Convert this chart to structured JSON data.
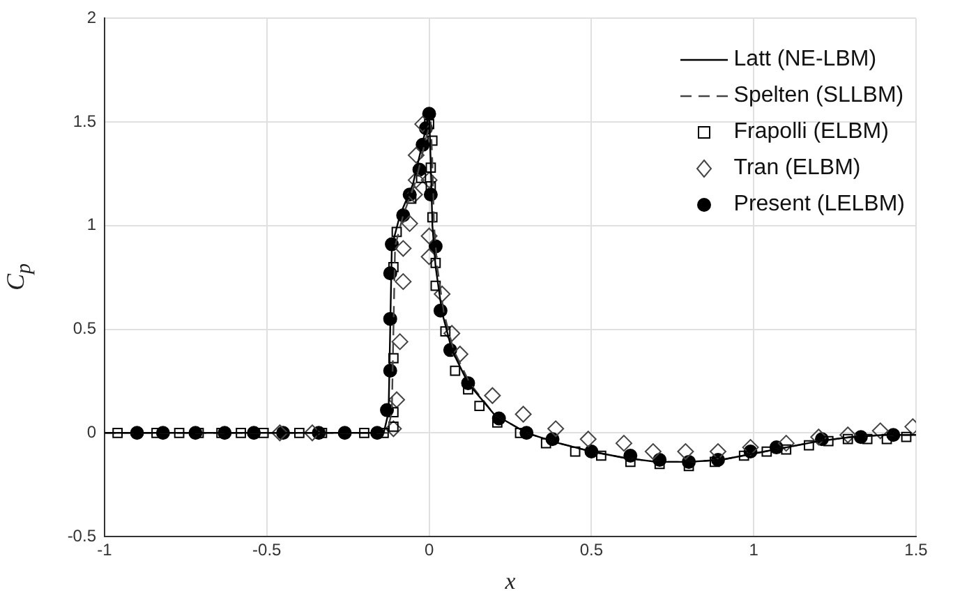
{
  "chart_data": {
    "type": "scatter",
    "xlabel": "x",
    "ylabel": "C$_{p}$",
    "xlim": [
      -1,
      1.5
    ],
    "ylim": [
      -0.5,
      2
    ],
    "xticks": [
      -1,
      -0.5,
      0,
      0.5,
      1,
      1.5
    ],
    "yticks": [
      -0.5,
      0,
      0.5,
      1,
      1.5,
      2
    ],
    "grid": true,
    "legend": "top right",
    "series": [
      {
        "name": "Latt (NE-LBM)",
        "type": "line",
        "color": "#000000",
        "marker": "none",
        "line_style": "solid",
        "x": [
          -1,
          -0.14,
          -0.125,
          -0.12,
          -0.115,
          -0.09,
          -0.05,
          -0.02,
          0,
          0.005,
          0.01,
          0.02,
          0.04,
          0.07,
          0.12,
          0.2,
          0.3,
          0.4,
          0.5,
          0.6,
          0.7,
          0.8,
          0.9,
          1.0,
          1.1,
          1.2,
          1.3,
          1.4,
          1.5
        ],
        "values": [
          0,
          0,
          0.1,
          0.5,
          0.9,
          1.05,
          1.2,
          1.4,
          1.54,
          1.3,
          1.0,
          0.8,
          0.58,
          0.4,
          0.24,
          0.09,
          0.0,
          -0.05,
          -0.09,
          -0.12,
          -0.14,
          -0.14,
          -0.13,
          -0.1,
          -0.07,
          -0.04,
          -0.02,
          -0.01,
          -0.01
        ]
      },
      {
        "name": "Spelten (SLLBM)",
        "type": "line",
        "color": "#444444",
        "marker": "none",
        "line_style": "dashed",
        "x": [
          -1,
          -0.13,
          -0.115,
          -0.11,
          -0.105,
          -0.08,
          -0.04,
          -0.01,
          0.005,
          0.01,
          0.015,
          0.025,
          0.045,
          0.075,
          0.125,
          0.2,
          0.3,
          0.4,
          0.5,
          0.6,
          0.7,
          0.8,
          0.9,
          1.0,
          1.1,
          1.2,
          1.3,
          1.4,
          1.5
        ],
        "values": [
          0,
          0,
          0.1,
          0.5,
          0.9,
          1.05,
          1.22,
          1.42,
          1.5,
          1.3,
          1.0,
          0.8,
          0.58,
          0.4,
          0.24,
          0.09,
          0.0,
          -0.05,
          -0.09,
          -0.12,
          -0.14,
          -0.14,
          -0.13,
          -0.1,
          -0.07,
          -0.04,
          -0.02,
          -0.01,
          -0.01
        ]
      },
      {
        "name": "Frapolli (ELBM)",
        "color": "#000000",
        "marker": "square",
        "x": [
          -0.96,
          -0.84,
          -0.77,
          -0.71,
          -0.64,
          -0.58,
          -0.51,
          -0.4,
          -0.33,
          -0.2,
          -0.14,
          -0.11,
          -0.11,
          -0.11,
          -0.11,
          -0.1,
          -0.055,
          -0.025,
          0.005,
          0.005,
          0.0,
          0.01,
          0.01,
          0.02,
          0.02,
          0.05,
          0.08,
          0.12,
          0.155,
          0.21,
          0.28,
          0.36,
          0.45,
          0.53,
          0.62,
          0.71,
          0.8,
          0.88,
          0.97,
          1.04,
          1.1,
          1.17,
          1.23,
          1.29,
          1.35,
          1.41,
          1.47
        ],
        "values": [
          0,
          0,
          0,
          0,
          0,
          0,
          0,
          0,
          0,
          0,
          0,
          0.03,
          0.1,
          0.36,
          0.8,
          0.97,
          1.13,
          1.23,
          1.28,
          1.19,
          1.49,
          1.41,
          1.04,
          0.82,
          0.71,
          0.49,
          0.3,
          0.21,
          0.13,
          0.05,
          0.0,
          -0.05,
          -0.09,
          -0.11,
          -0.14,
          -0.15,
          -0.16,
          -0.14,
          -0.11,
          -0.09,
          -0.08,
          -0.06,
          -0.04,
          -0.03,
          -0.03,
          -0.03,
          -0.02
        ]
      },
      {
        "name": "Tran (ELBM)",
        "color": "#444444",
        "marker": "diamond",
        "x": [
          -0.46,
          -0.36,
          -0.11,
          -0.1,
          -0.09,
          -0.08,
          -0.08,
          -0.06,
          -0.045,
          -0.04,
          -0.04,
          -0.02,
          0.0,
          0.0,
          0.0,
          0.04,
          0.07,
          0.095,
          0.195,
          0.29,
          0.39,
          0.49,
          0.6,
          0.69,
          0.79,
          0.89,
          0.99,
          1.1,
          1.2,
          1.29,
          1.39,
          1.49
        ],
        "values": [
          0,
          0,
          0.02,
          0.16,
          0.44,
          0.73,
          0.89,
          1.01,
          1.15,
          1.22,
          1.34,
          1.49,
          1.22,
          0.95,
          0.85,
          0.67,
          0.48,
          0.38,
          0.18,
          0.09,
          0.02,
          -0.03,
          -0.05,
          -0.09,
          -0.09,
          -0.09,
          -0.07,
          -0.05,
          -0.02,
          -0.01,
          0.01,
          0.03
        ]
      },
      {
        "name": "Present (LELBM)",
        "color": "#000000",
        "marker": "circle",
        "x": [
          -0.9,
          -0.82,
          -0.72,
          -0.63,
          -0.54,
          -0.45,
          -0.34,
          -0.26,
          -0.16,
          -0.13,
          -0.12,
          -0.12,
          -0.12,
          -0.115,
          -0.08,
          -0.06,
          -0.03,
          -0.02,
          -0.01,
          0.0,
          0.005,
          0.02,
          0.035,
          0.065,
          0.12,
          0.215,
          0.3,
          0.38,
          0.5,
          0.62,
          0.71,
          0.8,
          0.89,
          0.99,
          1.07,
          1.21,
          1.33,
          1.43
        ],
        "values": [
          0,
          0,
          0,
          0,
          0,
          0,
          0,
          0,
          0,
          0.11,
          0.3,
          0.55,
          0.77,
          0.91,
          1.05,
          1.15,
          1.27,
          1.39,
          1.47,
          1.54,
          1.15,
          0.9,
          0.59,
          0.4,
          0.24,
          0.07,
          0.0,
          -0.03,
          -0.09,
          -0.11,
          -0.13,
          -0.14,
          -0.13,
          -0.09,
          -0.07,
          -0.03,
          -0.02,
          -0.01
        ]
      }
    ]
  }
}
